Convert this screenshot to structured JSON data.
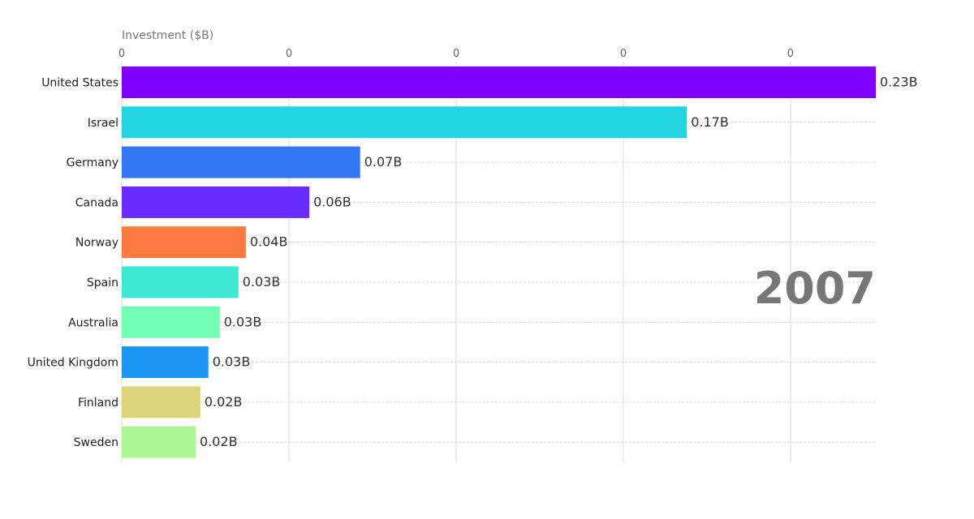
{
  "chart_data": {
    "type": "bar",
    "orientation": "horizontal",
    "xlabel": "Investment ($B)",
    "year": "2007",
    "xlim": [
      0,
      0.2255
    ],
    "x_ticks": [
      0,
      0.05,
      0.1,
      0.15,
      0.2
    ],
    "x_tick_labels": [
      "0",
      "0",
      "0",
      "0",
      "0"
    ],
    "grid": true,
    "categories": [
      "United States",
      "Israel",
      "Germany",
      "Canada",
      "Norway",
      "Spain",
      "Australia",
      "United Kingdom",
      "Finland",
      "Sweden"
    ],
    "values": [
      0.2255,
      0.169,
      0.0713,
      0.0561,
      0.0371,
      0.0349,
      0.0293,
      0.0259,
      0.0235,
      0.0221
    ],
    "value_labels": [
      "0.23B",
      "0.17B",
      "0.07B",
      "0.06B",
      "0.04B",
      "0.03B",
      "0.03B",
      "0.03B",
      "0.02B",
      "0.02B"
    ],
    "colors": [
      "#8000ff",
      "#22d4e0",
      "#3477f5",
      "#6a2bff",
      "#ff7a40",
      "#3fe8d2",
      "#72ffb4",
      "#1a96f2",
      "#ddd57c",
      "#acf793"
    ]
  }
}
